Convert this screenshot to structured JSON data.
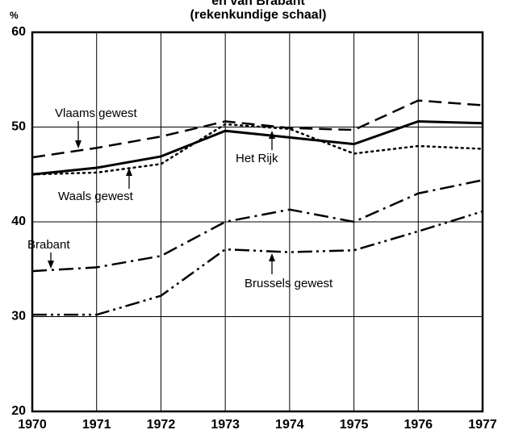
{
  "chart_data": {
    "type": "line",
    "title": "en van Brabant",
    "subtitle": "(rekenkundige schaal)",
    "y_label": "%",
    "x": [
      1970,
      1971,
      1972,
      1973,
      1974,
      1975,
      1976,
      1977
    ],
    "xlim": [
      1970,
      1977
    ],
    "xticks": [
      1970,
      1971,
      1972,
      1973,
      1974,
      1975,
      1976,
      1977
    ],
    "ylim": [
      20,
      60
    ],
    "yticks": [
      20,
      30,
      40,
      50,
      60
    ],
    "grid": true,
    "series": [
      {
        "name": "Vlaams gewest",
        "color": "#000000",
        "style": "dashed",
        "values": [
          46.8,
          47.8,
          49.0,
          50.6,
          49.9,
          49.7,
          52.8,
          52.3
        ]
      },
      {
        "name": "Het Rijk",
        "color": "#000000",
        "style": "solid",
        "values": [
          45.0,
          45.7,
          46.9,
          49.6,
          48.9,
          48.2,
          50.6,
          50.4
        ]
      },
      {
        "name": "Waals gewest",
        "color": "#000000",
        "style": "dotted",
        "values": [
          45.0,
          45.2,
          46.1,
          50.3,
          49.8,
          47.2,
          48.0,
          47.7
        ]
      },
      {
        "name": "Brabant",
        "color": "#000000",
        "style": "dashdot",
        "values": [
          34.8,
          35.2,
          36.4,
          40.0,
          41.3,
          40.0,
          43.0,
          44.4
        ]
      },
      {
        "name": "Brussels gewest",
        "color": "#000000",
        "style": "dashdotdot",
        "values": [
          30.2,
          30.2,
          32.2,
          37.1,
          36.8,
          37.0,
          39.0,
          41.1
        ]
      }
    ]
  }
}
